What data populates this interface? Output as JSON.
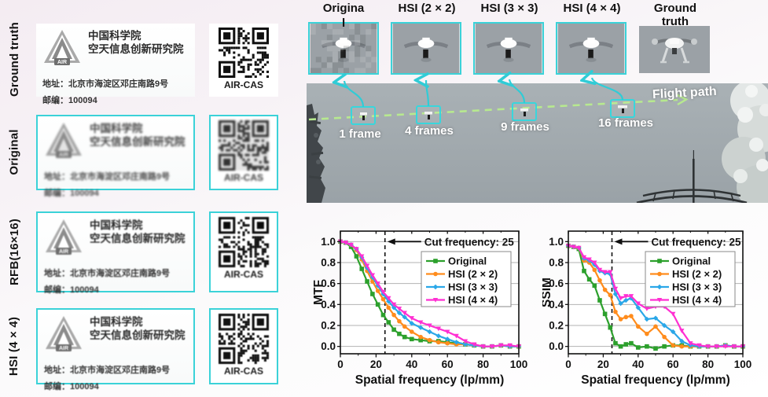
{
  "colors": {
    "accent_cyan": "#3bd2d8",
    "flightpath_green": "#b7e98f",
    "series_green": "#2ca02c",
    "series_orange": "#ff8c1c",
    "series_blue": "#2aa7e8",
    "series_magenta": "#ff2fd2"
  },
  "left_panel": {
    "card": {
      "logo_text": "AIR",
      "org_line1": "中国科学院",
      "org_line2": "空天信息创新研究院",
      "address": "地址：北京市海淀区邓庄南路9号",
      "postcode": "邮编：100094"
    },
    "qr_caption": "AIR-CAS",
    "rows": [
      {
        "label": "Ground truth"
      },
      {
        "label": "Original"
      },
      {
        "label": "RFB(16×16)"
      },
      {
        "label": "HSI (4 × 4)"
      }
    ]
  },
  "sequence": {
    "crops": [
      {
        "label": "Origina",
        "label_wrap": "l"
      },
      {
        "label": "HSI (2 × 2)"
      },
      {
        "label": "HSI (3 × 3)"
      },
      {
        "label": "HSI (4 × 4)"
      },
      {
        "label": "Ground truth"
      }
    ]
  },
  "flight": {
    "path_label": "Flight path",
    "markers": [
      {
        "label": "1 frame"
      },
      {
        "label": "4 frames"
      },
      {
        "label": "9 frames"
      },
      {
        "label": "16 frames"
      }
    ]
  },
  "chart_data": [
    {
      "type": "line",
      "ylabel": "MTF",
      "xlabel": "Spatial frequency (lp/mm)",
      "annotation": "Cut frequency: 25",
      "cut_frequency": 25,
      "xlim": [
        0,
        100
      ],
      "ylim": [
        -0.07,
        1.1
      ],
      "xticks": [
        0,
        20,
        40,
        60,
        80,
        100
      ],
      "xminorticks": [
        10,
        30,
        50,
        70,
        90
      ],
      "yticks": [
        "0.0",
        "0.2",
        "0.4",
        "0.6",
        "0.8",
        "1.0"
      ],
      "grid": "horizontal",
      "legend_position": "upper right",
      "x": [
        0,
        3,
        6,
        9,
        12,
        15,
        18,
        21,
        24,
        27,
        30,
        33,
        36,
        40,
        45,
        50,
        55,
        60,
        65,
        70,
        75,
        80,
        85,
        90,
        95,
        100
      ],
      "series": [
        {
          "name": "Original",
          "color": "#2ca02c",
          "marker": "square",
          "values": [
            1.0,
            0.99,
            0.95,
            0.86,
            0.74,
            0.62,
            0.5,
            0.4,
            0.3,
            0.23,
            0.16,
            0.12,
            0.09,
            0.07,
            0.06,
            0.05,
            0.05,
            0.04,
            0.03,
            0.02,
            0.01,
            0.0,
            0.0,
            0.01,
            0.0,
            0.0
          ]
        },
        {
          "name": "HSI (2 × 2)",
          "color": "#ff8c1c",
          "marker": "circle",
          "values": [
            1.0,
            0.99,
            0.97,
            0.92,
            0.83,
            0.72,
            0.62,
            0.53,
            0.45,
            0.37,
            0.3,
            0.24,
            0.19,
            0.14,
            0.09,
            0.06,
            0.04,
            0.03,
            0.02,
            0.02,
            0.01,
            0.0,
            0.0,
            0.01,
            0.0,
            0.0
          ]
        },
        {
          "name": "HSI (3 × 3)",
          "color": "#2aa7e8",
          "marker": "diamond",
          "values": [
            1.0,
            0.99,
            0.97,
            0.93,
            0.85,
            0.75,
            0.66,
            0.58,
            0.5,
            0.43,
            0.37,
            0.32,
            0.28,
            0.22,
            0.18,
            0.14,
            0.1,
            0.07,
            0.04,
            0.02,
            0.01,
            0.0,
            0.0,
            0.01,
            0.0,
            0.0
          ]
        },
        {
          "name": "HSI (4 × 4)",
          "color": "#ff2fd2",
          "marker": "triangle",
          "values": [
            1.0,
            0.99,
            0.97,
            0.93,
            0.86,
            0.77,
            0.68,
            0.6,
            0.52,
            0.46,
            0.4,
            0.36,
            0.32,
            0.27,
            0.23,
            0.2,
            0.17,
            0.14,
            0.1,
            0.05,
            0.02,
            0.0,
            0.0,
            0.01,
            0.01,
            0.0
          ]
        }
      ]
    },
    {
      "type": "line",
      "ylabel": "SSIM",
      "xlabel": "Spatial frequency (lp/mm)",
      "annotation": "Cut frequency: 25",
      "cut_frequency": 25,
      "xlim": [
        0,
        100
      ],
      "ylim": [
        -0.07,
        1.1
      ],
      "xticks": [
        0,
        20,
        40,
        60,
        80,
        100
      ],
      "xminorticks": [
        10,
        30,
        50,
        70,
        90
      ],
      "yticks": [
        "0.0",
        "0.2",
        "0.4",
        "0.6",
        "0.8",
        "1.0"
      ],
      "grid": "horizontal",
      "legend_position": "upper right",
      "x": [
        0,
        3,
        6,
        9,
        12,
        15,
        18,
        21,
        24,
        27,
        30,
        33,
        36,
        40,
        45,
        50,
        55,
        60,
        65,
        70,
        75,
        80,
        85,
        90,
        95,
        100
      ],
      "series": [
        {
          "name": "Original",
          "color": "#2ca02c",
          "marker": "square",
          "values": [
            0.96,
            0.95,
            0.93,
            0.72,
            0.64,
            0.58,
            0.44,
            0.31,
            0.18,
            0.03,
            0.0,
            0.02,
            0.03,
            -0.01,
            0.0,
            -0.02,
            0.0,
            0.01,
            0.01,
            0.0,
            0.0,
            0.0,
            0.0,
            0.01,
            0.0,
            0.0
          ]
        },
        {
          "name": "HSI (2 × 2)",
          "color": "#ff8c1c",
          "marker": "circle",
          "values": [
            0.96,
            0.95,
            0.94,
            0.82,
            0.8,
            0.73,
            0.63,
            0.54,
            0.49,
            0.33,
            0.26,
            0.28,
            0.29,
            0.19,
            0.12,
            0.19,
            0.09,
            0.01,
            0.0,
            0.0,
            0.0,
            0.0,
            0.0,
            0.01,
            0.0,
            0.0
          ]
        },
        {
          "name": "HSI (3 × 3)",
          "color": "#2aa7e8",
          "marker": "diamond",
          "values": [
            0.96,
            0.95,
            0.94,
            0.84,
            0.82,
            0.78,
            0.72,
            0.7,
            0.69,
            0.5,
            0.41,
            0.44,
            0.46,
            0.37,
            0.26,
            0.27,
            0.2,
            0.14,
            0.05,
            0.01,
            0.0,
            0.0,
            0.0,
            0.01,
            0.0,
            0.0
          ]
        },
        {
          "name": "HSI (4 × 4)",
          "color": "#ff2fd2",
          "marker": "triangle",
          "values": [
            0.96,
            0.95,
            0.94,
            0.85,
            0.83,
            0.8,
            0.73,
            0.71,
            0.71,
            0.55,
            0.46,
            0.48,
            0.48,
            0.41,
            0.36,
            0.38,
            0.38,
            0.31,
            0.15,
            0.03,
            0.01,
            0.0,
            0.0,
            0.0,
            0.0,
            0.0
          ]
        }
      ]
    }
  ]
}
